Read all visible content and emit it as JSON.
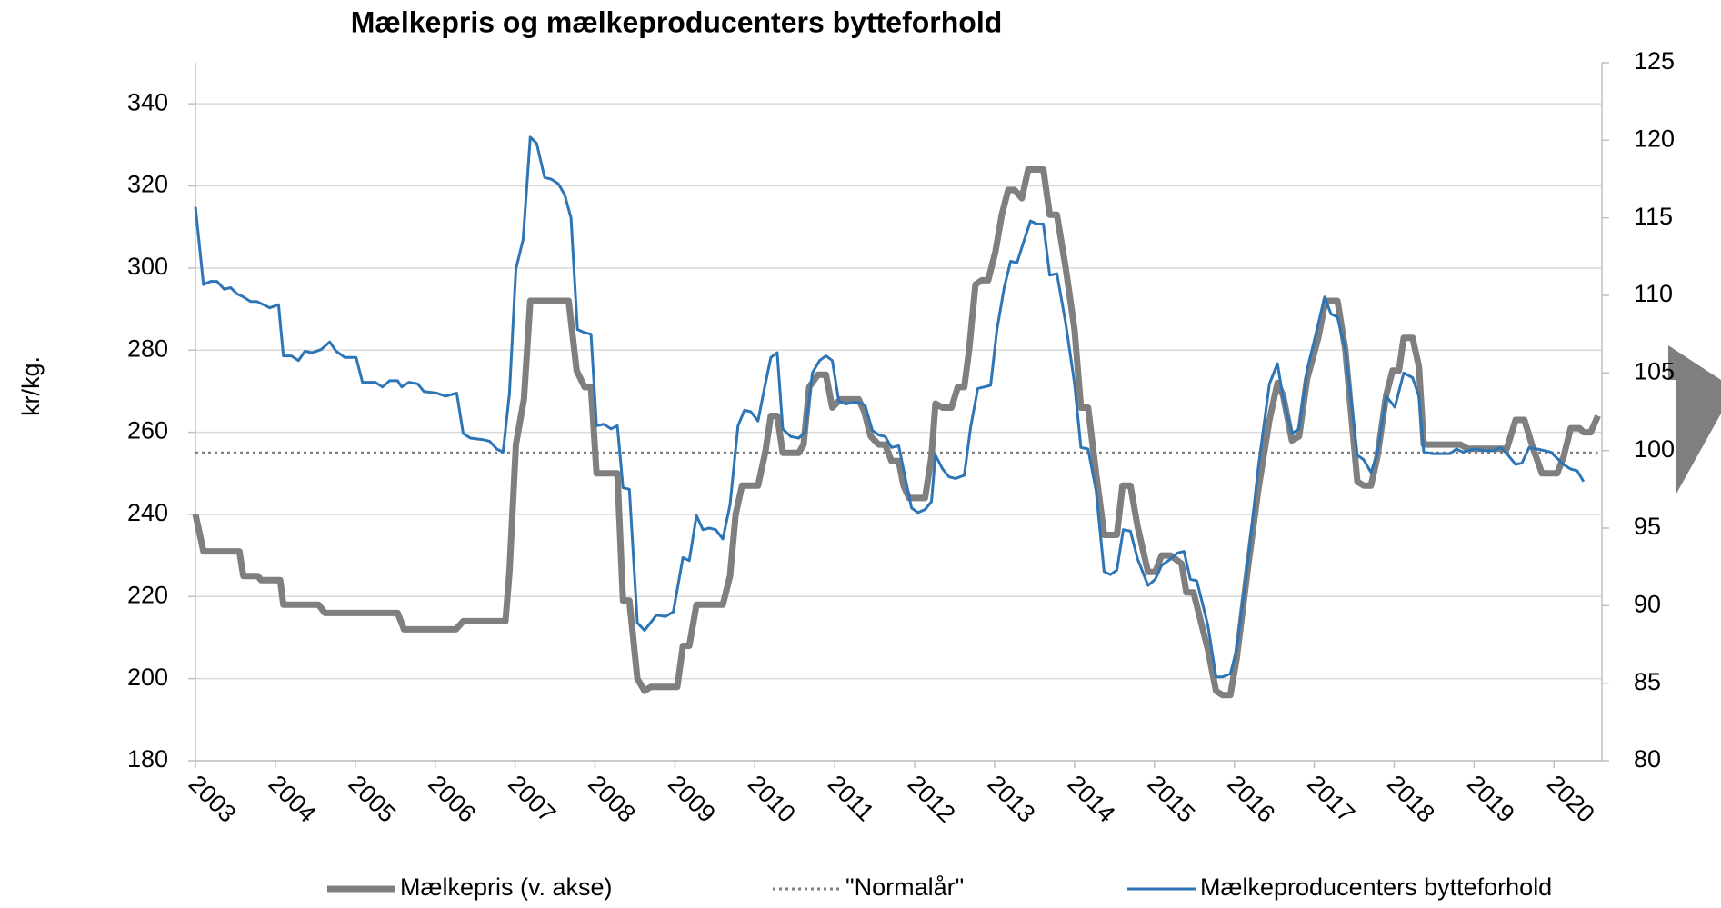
{
  "chart_data": {
    "type": "line",
    "title": "Mælkepris og mælkeproducenters bytteforhold",
    "ylabel": "kr/kg.",
    "xlim": [
      2003,
      2020.6
    ],
    "xticks": [
      2003,
      2004,
      2005,
      2006,
      2007,
      2008,
      2009,
      2010,
      2011,
      2012,
      2013,
      2014,
      2015,
      2016,
      2017,
      2018,
      2019,
      2020
    ],
    "ylim": [
      180,
      350
    ],
    "yticks": [
      180,
      200,
      220,
      240,
      260,
      280,
      300,
      320,
      340
    ],
    "y2lim": [
      80,
      125
    ],
    "y2ticks": [
      80,
      85,
      90,
      95,
      100,
      105,
      110,
      115,
      120,
      125
    ],
    "grid": true,
    "legend": "bottom",
    "series": [
      {
        "name": "Mælkepris (v. akse)",
        "color": "#7f7f7f",
        "style": "solid",
        "width": 7,
        "x": [
          2003.0,
          2003.1,
          2003.55,
          2003.6,
          2003.78,
          2003.82,
          2004.06,
          2004.1,
          2004.54,
          2004.62,
          2005.53,
          2005.61,
          2006.26,
          2006.35,
          2006.88,
          2006.93,
          2007.01,
          2007.11,
          2007.19,
          2007.67,
          2007.77,
          2007.87,
          2007.95,
          2008.02,
          2008.28,
          2008.35,
          2008.43,
          2008.53,
          2008.62,
          2008.7,
          2009.03,
          2009.1,
          2009.18,
          2009.27,
          2009.6,
          2009.69,
          2009.76,
          2009.84,
          2010.04,
          2010.13,
          2010.2,
          2010.28,
          2010.35,
          2010.55,
          2010.61,
          2010.68,
          2010.79,
          2010.89,
          2010.97,
          2011.07,
          2011.3,
          2011.37,
          2011.45,
          2011.55,
          2011.63,
          2011.71,
          2011.8,
          2011.86,
          2011.93,
          2012.13,
          2012.21,
          2012.26,
          2012.35,
          2012.46,
          2012.54,
          2012.62,
          2012.68,
          2012.76,
          2012.84,
          2012.92,
          2013.01,
          2013.09,
          2013.17,
          2013.25,
          2013.34,
          2013.42,
          2013.61,
          2013.69,
          2013.78,
          2013.89,
          2014.0,
          2014.08,
          2014.17,
          2014.27,
          2014.37,
          2014.53,
          2014.6,
          2014.7,
          2014.79,
          2014.92,
          2015.01,
          2015.09,
          2015.2,
          2015.34,
          2015.4,
          2015.49,
          2015.67,
          2015.77,
          2015.85,
          2015.95,
          2016.03,
          2016.17,
          2016.3,
          2016.44,
          2016.54,
          2016.61,
          2016.72,
          2016.81,
          2016.91,
          2017.05,
          2017.14,
          2017.29,
          2017.39,
          2017.54,
          2017.62,
          2017.71,
          2017.79,
          2017.9,
          2017.98,
          2018.06,
          2018.12,
          2018.23,
          2018.31,
          2018.37,
          2018.83,
          2018.92,
          2019.41,
          2019.52,
          2019.63,
          2019.74,
          2019.85,
          2020.04,
          2020.12,
          2020.21,
          2020.32,
          2020.37,
          2020.46,
          2020.55
        ],
        "values": [
          240,
          231,
          231,
          225,
          225,
          224,
          224,
          218,
          218,
          216,
          216,
          212,
          212,
          214,
          214,
          226,
          257,
          268,
          292,
          292,
          275,
          271,
          271,
          250,
          250,
          219,
          219,
          200,
          197,
          198,
          198,
          208,
          208,
          218,
          218,
          225,
          240,
          247,
          247,
          255,
          264,
          264,
          255,
          255,
          257,
          271,
          274,
          274,
          266,
          268,
          268,
          265,
          259,
          257,
          257,
          253,
          253,
          247,
          244,
          244,
          254,
          267,
          266,
          266,
          271,
          271,
          280,
          296,
          297,
          297,
          304,
          313,
          319,
          319,
          317,
          324,
          324,
          313,
          313,
          300,
          285,
          266,
          266,
          250,
          235,
          235,
          247,
          247,
          237,
          226,
          226,
          230,
          230,
          228,
          221,
          221,
          207,
          197,
          196,
          196,
          205,
          227,
          246,
          263,
          272,
          269,
          258,
          259,
          273,
          283,
          292,
          292,
          280,
          248,
          247,
          247,
          254,
          269,
          275,
          275,
          283,
          283,
          276,
          257,
          257,
          256,
          256,
          263,
          263,
          256,
          250,
          250,
          254,
          261,
          261,
          260,
          260,
          264
        ]
      },
      {
        "name": "\"Normalår\"",
        "color": "#7f7f7f",
        "style": "dotted",
        "width": 3,
        "x": [
          2003.0,
          2020.55
        ],
        "values": [
          255,
          255
        ]
      },
      {
        "name": "Mælkeproducenters bytteforhold",
        "color": "#2e75b6",
        "style": "solid",
        "width": 3,
        "axis": "y2",
        "x": [
          2003.0,
          2003.1,
          2003.19,
          2003.27,
          2003.36,
          2003.44,
          2003.52,
          2003.6,
          2003.69,
          2003.77,
          2003.85,
          2003.93,
          2004.04,
          2004.1,
          2004.2,
          2004.29,
          2004.37,
          2004.46,
          2004.57,
          2004.68,
          2004.76,
          2004.87,
          2005.01,
          2005.09,
          2005.25,
          2005.34,
          2005.43,
          2005.53,
          2005.58,
          2005.67,
          2005.78,
          2005.86,
          2006.02,
          2006.13,
          2006.27,
          2006.35,
          2006.44,
          2006.6,
          2006.68,
          2006.77,
          2006.85,
          2006.93,
          2007.01,
          2007.1,
          2007.19,
          2007.27,
          2007.37,
          2007.45,
          2007.54,
          2007.62,
          2007.7,
          2007.78,
          2007.87,
          2007.95,
          2008.02,
          2008.11,
          2008.2,
          2008.28,
          2008.35,
          2008.43,
          2008.53,
          2008.62,
          2008.77,
          2008.88,
          2008.98,
          2009.1,
          2009.18,
          2009.27,
          2009.35,
          2009.43,
          2009.51,
          2009.6,
          2009.69,
          2009.79,
          2009.87,
          2009.95,
          2010.04,
          2010.12,
          2010.2,
          2010.28,
          2010.35,
          2010.45,
          2010.55,
          2010.63,
          2010.72,
          2010.81,
          2010.89,
          2010.97,
          2011.05,
          2011.14,
          2011.22,
          2011.3,
          2011.38,
          2011.47,
          2011.55,
          2011.63,
          2011.71,
          2011.8,
          2011.88,
          2011.96,
          2012.04,
          2012.13,
          2012.21,
          2012.26,
          2012.35,
          2012.43,
          2012.51,
          2012.62,
          2012.7,
          2012.79,
          2012.95,
          2013.03,
          2013.12,
          2013.2,
          2013.28,
          2013.36,
          2013.45,
          2013.53,
          2013.61,
          2013.69,
          2013.78,
          2013.89,
          2014.0,
          2014.08,
          2014.17,
          2014.27,
          2014.37,
          2014.45,
          2014.53,
          2014.61,
          2014.7,
          2014.79,
          2014.92,
          2015.01,
          2015.09,
          2015.2,
          2015.29,
          2015.37,
          2015.45,
          2015.53,
          2015.67,
          2015.77,
          2015.85,
          2015.95,
          2016.03,
          2016.17,
          2016.3,
          2016.44,
          2016.54,
          2016.61,
          2016.72,
          2016.81,
          2016.91,
          2017.02,
          2017.13,
          2017.21,
          2017.29,
          2017.39,
          2017.49,
          2017.54,
          2017.62,
          2017.71,
          2017.79,
          2017.9,
          2018.01,
          2018.12,
          2018.23,
          2018.31,
          2018.37,
          2018.48,
          2018.7,
          2018.78,
          2018.86,
          2019.0,
          2019.14,
          2019.25,
          2019.33,
          2019.41,
          2019.52,
          2019.6,
          2019.69,
          2019.79,
          2019.88,
          2019.96,
          2020.04,
          2020.12,
          2020.21,
          2020.29,
          2020.37
        ],
        "values": [
          115.7,
          110.7,
          110.9,
          110.9,
          110.4,
          110.5,
          110.1,
          109.9,
          109.6,
          109.6,
          109.4,
          109.2,
          109.4,
          106.1,
          106.1,
          105.8,
          106.4,
          106.3,
          106.5,
          107.0,
          106.4,
          106.0,
          106.0,
          104.4,
          104.4,
          104.1,
          104.5,
          104.5,
          104.1,
          104.4,
          104.3,
          103.8,
          103.7,
          103.5,
          103.7,
          101.1,
          100.8,
          100.7,
          100.6,
          100.1,
          99.9,
          103.7,
          111.7,
          113.6,
          120.2,
          119.8,
          117.6,
          117.5,
          117.2,
          116.5,
          115.0,
          107.8,
          107.6,
          107.5,
          101.6,
          101.7,
          101.4,
          101.6,
          97.6,
          97.5,
          88.9,
          88.4,
          89.4,
          89.3,
          89.6,
          93.1,
          92.9,
          95.8,
          94.9,
          95.0,
          94.9,
          94.3,
          96.5,
          101.6,
          102.6,
          102.5,
          101.9,
          104.0,
          106.0,
          106.3,
          101.4,
          100.9,
          100.8,
          101.2,
          105.0,
          105.8,
          106.1,
          105.8,
          103.2,
          103.0,
          103.1,
          103.1,
          102.9,
          101.3,
          101.0,
          100.9,
          100.2,
          100.3,
          98.3,
          96.3,
          96.0,
          96.2,
          96.7,
          99.7,
          98.8,
          98.3,
          98.2,
          98.4,
          101.5,
          104.0,
          104.2,
          107.8,
          110.5,
          112.2,
          112.1,
          113.4,
          114.8,
          114.6,
          114.6,
          111.3,
          111.4,
          108.2,
          104.3,
          100.2,
          100.1,
          97.4,
          92.2,
          92.0,
          92.3,
          94.9,
          94.8,
          93.0,
          91.3,
          91.7,
          92.6,
          93.0,
          93.4,
          93.5,
          91.7,
          91.6,
          88.7,
          85.4,
          85.4,
          85.6,
          87.2,
          92.8,
          98.9,
          104.3,
          105.6,
          103.4,
          101.1,
          101.4,
          105.2,
          107.5,
          109.9,
          108.8,
          108.6,
          106.5,
          102.0,
          99.7,
          99.4,
          98.6,
          99.8,
          103.5,
          102.8,
          105.0,
          104.7,
          103.5,
          99.9,
          99.8,
          99.8,
          100.1,
          99.9,
          100.1,
          100.0,
          100.0,
          100.2,
          99.8,
          99.1,
          99.2,
          100.2,
          100.1,
          100.0,
          99.9,
          99.5,
          99.1,
          98.8,
          98.7,
          98.0
        ]
      }
    ]
  }
}
